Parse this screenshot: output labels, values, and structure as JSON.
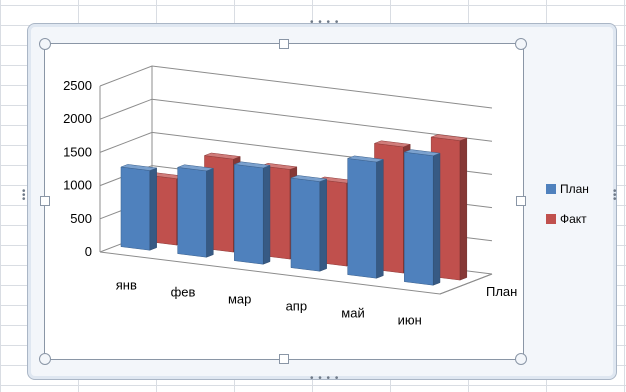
{
  "chart_data": {
    "type": "bar",
    "categories": [
      "янв",
      "фев",
      "мар",
      "апр",
      "май",
      "июн"
    ],
    "series": [
      {
        "name": "План",
        "values": [
          1200,
          1300,
          1450,
          1350,
          1750,
          1950
        ],
        "color": "#4f81bd"
      },
      {
        "name": "Факт",
        "values": [
          1000,
          1400,
          1350,
          1250,
          1900,
          2100
        ],
        "color": "#c0504d"
      }
    ],
    "y_ticks": [
      "0",
      "500",
      "1000",
      "1500",
      "2000",
      "2500"
    ],
    "ylim": [
      0,
      2500
    ],
    "depth_axis_label": "План",
    "grid": true,
    "legend_position": "right"
  }
}
